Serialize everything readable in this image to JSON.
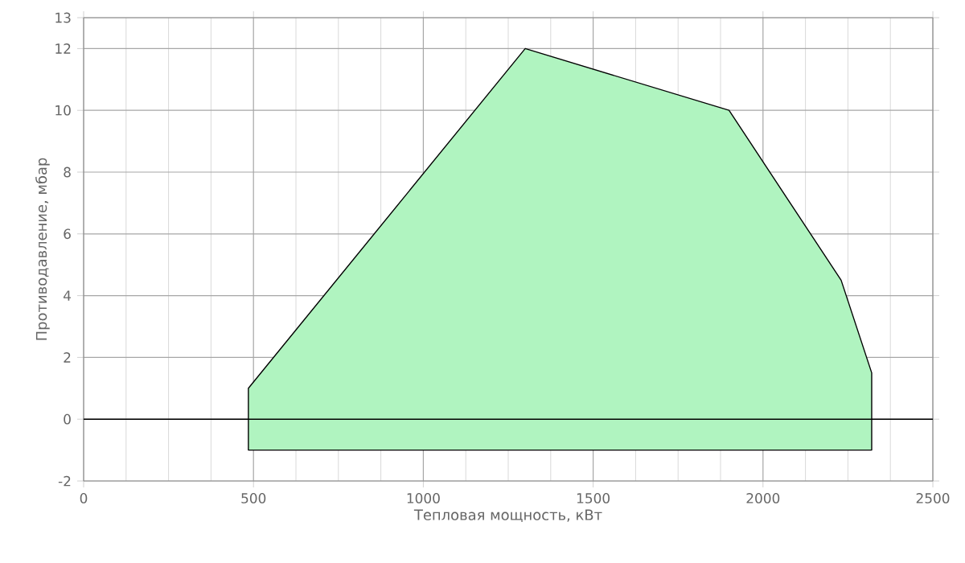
{
  "chart_data": {
    "type": "area",
    "xlabel": "Тепловая мощность, кВт",
    "ylabel": "Противодавление, мбар",
    "series": [
      {
        "color": "#b0f4c0",
        "x": [
          485,
          485,
          1300,
          1900,
          2230,
          2320,
          2320
        ],
        "values": [
          -1,
          1,
          12,
          10,
          4.5,
          1.5,
          -1
        ]
      }
    ],
    "xlim": [
      0,
      2500
    ],
    "xticks": [
      0,
      500,
      1000,
      1500,
      2000,
      2500
    ],
    "ylim": [
      -2,
      13
    ],
    "yticks": [
      -2,
      0,
      2,
      4,
      6,
      8,
      10,
      12,
      13
    ],
    "ref_lines": [
      {
        "axis": "y",
        "value": 0,
        "color": "#000000"
      }
    ],
    "grid": true
  }
}
